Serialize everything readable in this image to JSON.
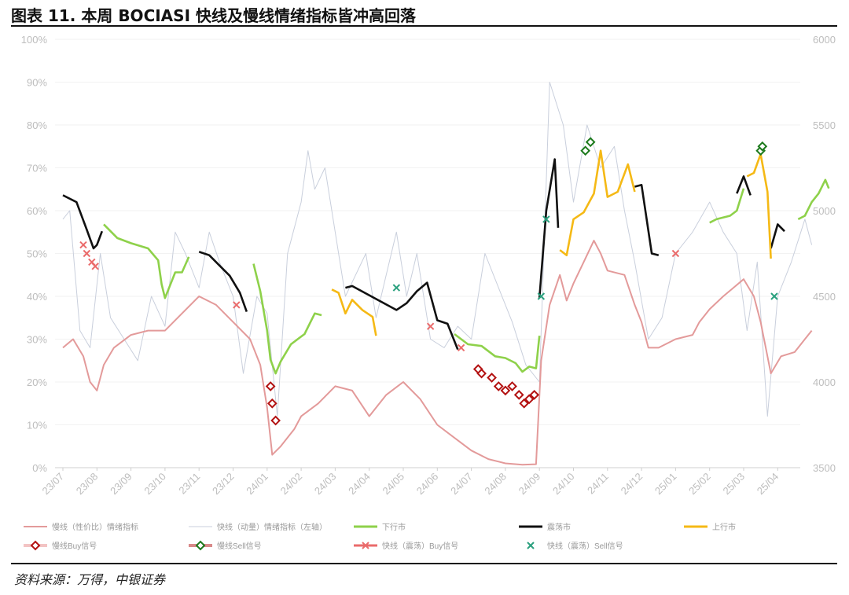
{
  "header": {
    "title": "图表 11. 本周 BOCIASI 快线及慢线情绪指标皆冲高回落"
  },
  "footer": {
    "source": "资料来源：万得，中银证券"
  },
  "colors": {
    "slow": "#e39a9a",
    "fast": "#c9cfdc",
    "down": "#8ed14a",
    "shock": "#111111",
    "up": "#f5b915",
    "slow_buy": "#b31212",
    "slow_sell": "#1c7a1c",
    "fast_buy": "#ea6b6b",
    "fast_sell": "#2aa07e",
    "grid": "#e6e6e6"
  },
  "chart_data": {
    "type": "line",
    "x_ticks": [
      "23/07",
      "23/08",
      "23/09",
      "23/10",
      "23/11",
      "23/12",
      "24/01",
      "24/02",
      "24/03",
      "24/04",
      "24/05",
      "24/06",
      "24/07",
      "24/08",
      "24/09",
      "24/10",
      "24/11",
      "24/12",
      "25/01",
      "25/02",
      "25/03",
      "25/04"
    ],
    "y_left": {
      "ticks": [
        "0%",
        "10%",
        "20%",
        "30%",
        "40%",
        "50%",
        "60%",
        "70%",
        "80%",
        "90%",
        "100%"
      ],
      "ylim": [
        0,
        100
      ]
    },
    "y_right": {
      "ticks": [
        "3500",
        "4000",
        "4500",
        "5000",
        "5500",
        "6000"
      ],
      "ylim": [
        3500,
        6000
      ]
    },
    "legend": [
      {
        "label": "慢线（性价比）情绪指标",
        "key": "slow"
      },
      {
        "label": "快线（动量）情绪指标（左轴）",
        "key": "fast"
      },
      {
        "label": "下行市",
        "key": "down"
      },
      {
        "label": "震荡市",
        "key": "shock"
      },
      {
        "label": "上行市",
        "key": "up"
      },
      {
        "label": "慢线Buy信号",
        "key": "slow_buy"
      },
      {
        "label": "慢线Sell信号",
        "key": "slow_sell"
      },
      {
        "label": "快线（震荡）Buy信号",
        "key": "fast_buy"
      },
      {
        "label": "快线（震荡）Sell信号",
        "key": "fast_sell"
      }
    ],
    "series": [
      {
        "name": "慢线（性价比）情绪指标",
        "axis": "left",
        "points": [
          [
            0.0,
            28
          ],
          [
            0.3,
            30
          ],
          [
            0.6,
            26
          ],
          [
            0.8,
            20
          ],
          [
            1.0,
            18
          ],
          [
            1.2,
            24
          ],
          [
            1.5,
            28
          ],
          [
            2.0,
            31
          ],
          [
            2.5,
            32
          ],
          [
            3.0,
            32
          ],
          [
            3.5,
            36
          ],
          [
            4.0,
            40
          ],
          [
            4.5,
            38
          ],
          [
            5.0,
            34
          ],
          [
            5.5,
            30
          ],
          [
            5.8,
            24
          ],
          [
            6.0,
            14
          ],
          [
            6.15,
            3
          ],
          [
            6.4,
            5
          ],
          [
            6.8,
            9
          ],
          [
            7.0,
            12
          ],
          [
            7.5,
            15
          ],
          [
            8.0,
            19
          ],
          [
            8.5,
            18
          ],
          [
            9.0,
            12
          ],
          [
            9.5,
            17
          ],
          [
            10.0,
            20
          ],
          [
            10.5,
            16
          ],
          [
            11.0,
            10
          ],
          [
            11.5,
            7
          ],
          [
            12.0,
            4
          ],
          [
            12.5,
            2
          ],
          [
            13.0,
            1
          ],
          [
            13.5,
            0.7
          ],
          [
            13.9,
            0.8
          ],
          [
            14.05,
            25
          ],
          [
            14.3,
            38
          ],
          [
            14.6,
            45
          ],
          [
            14.8,
            39
          ],
          [
            15.0,
            43
          ],
          [
            15.3,
            48
          ],
          [
            15.6,
            53
          ],
          [
            15.8,
            50
          ],
          [
            16.0,
            46
          ],
          [
            16.5,
            45
          ],
          [
            16.8,
            38
          ],
          [
            17.0,
            34
          ],
          [
            17.2,
            28
          ],
          [
            17.5,
            28
          ],
          [
            18.0,
            30
          ],
          [
            18.5,
            31
          ],
          [
            18.7,
            34
          ],
          [
            19.0,
            37
          ],
          [
            19.4,
            40
          ],
          [
            19.7,
            42
          ],
          [
            20.0,
            44
          ],
          [
            20.3,
            40
          ],
          [
            20.5,
            34
          ],
          [
            20.8,
            22
          ],
          [
            21.1,
            26
          ],
          [
            21.5,
            27
          ],
          [
            21.8,
            30
          ],
          [
            22.0,
            32
          ]
        ]
      },
      {
        "name": "快线（动量）情绪指标（左轴）",
        "axis": "left",
        "points": [
          [
            0.0,
            58
          ],
          [
            0.2,
            60
          ],
          [
            0.5,
            32
          ],
          [
            0.8,
            28
          ],
          [
            1.1,
            50
          ],
          [
            1.4,
            35
          ],
          [
            1.8,
            30
          ],
          [
            2.2,
            25
          ],
          [
            2.6,
            40
          ],
          [
            3.0,
            33
          ],
          [
            3.3,
            55
          ],
          [
            3.6,
            50
          ],
          [
            4.0,
            42
          ],
          [
            4.3,
            55
          ],
          [
            4.6,
            48
          ],
          [
            5.0,
            40
          ],
          [
            5.3,
            22
          ],
          [
            5.7,
            40
          ],
          [
            6.0,
            36
          ],
          [
            6.3,
            12
          ],
          [
            6.6,
            50
          ],
          [
            7.0,
            62
          ],
          [
            7.2,
            74
          ],
          [
            7.4,
            65
          ],
          [
            7.7,
            70
          ],
          [
            8.0,
            55
          ],
          [
            8.3,
            40
          ],
          [
            8.6,
            45
          ],
          [
            8.9,
            50
          ],
          [
            9.2,
            35
          ],
          [
            9.5,
            45
          ],
          [
            9.8,
            55
          ],
          [
            10.1,
            40
          ],
          [
            10.4,
            50
          ],
          [
            10.8,
            30
          ],
          [
            11.2,
            28
          ],
          [
            11.6,
            33
          ],
          [
            12.0,
            30
          ],
          [
            12.4,
            50
          ],
          [
            12.8,
            42
          ],
          [
            13.2,
            34
          ],
          [
            13.6,
            24
          ],
          [
            14.0,
            20
          ],
          [
            14.3,
            90
          ],
          [
            14.7,
            80
          ],
          [
            15.0,
            62
          ],
          [
            15.4,
            80
          ],
          [
            15.8,
            70
          ],
          [
            16.2,
            75
          ],
          [
            16.5,
            60
          ],
          [
            16.8,
            48
          ],
          [
            17.2,
            30
          ],
          [
            17.6,
            35
          ],
          [
            18.0,
            50
          ],
          [
            18.5,
            55
          ],
          [
            19.0,
            62
          ],
          [
            19.4,
            55
          ],
          [
            19.8,
            50
          ],
          [
            20.1,
            32
          ],
          [
            20.4,
            48
          ],
          [
            20.7,
            12
          ],
          [
            21.0,
            40
          ],
          [
            21.4,
            48
          ],
          [
            21.8,
            58
          ],
          [
            22.0,
            52
          ]
        ]
      },
      {
        "name": "下行市",
        "axis": "right",
        "segments": [
          [
            [
              1.2,
              4920
            ],
            [
              1.6,
              4840
            ],
            [
              2.0,
              4810
            ],
            [
              2.5,
              4780
            ],
            [
              2.8,
              4710
            ],
            [
              2.9,
              4570
            ],
            [
              3.0,
              4490
            ],
            [
              3.3,
              4640
            ],
            [
              3.5,
              4640
            ],
            [
              3.7,
              4730
            ]
          ],
          [
            [
              5.6,
              4690
            ],
            [
              5.8,
              4530
            ],
            [
              6.0,
              4300
            ],
            [
              6.1,
              4130
            ],
            [
              6.25,
              4050
            ],
            [
              6.4,
              4120
            ],
            [
              6.7,
              4220
            ],
            [
              7.1,
              4280
            ],
            [
              7.4,
              4400
            ],
            [
              7.6,
              4390
            ]
          ],
          [
            [
              11.5,
              4280
            ],
            [
              11.9,
              4220
            ],
            [
              12.3,
              4210
            ],
            [
              12.7,
              4150
            ],
            [
              13.0,
              4140
            ],
            [
              13.3,
              4110
            ],
            [
              13.5,
              4060
            ],
            [
              13.7,
              4090
            ],
            [
              13.9,
              4080
            ],
            [
              14.0,
              4270
            ]
          ],
          [
            [
              19.0,
              4930
            ],
            [
              19.2,
              4950
            ],
            [
              19.6,
              4970
            ],
            [
              19.8,
              5000
            ],
            [
              20.0,
              5130
            ]
          ],
          [
            [
              21.6,
              4950
            ],
            [
              21.8,
              4970
            ],
            [
              22.0,
              5050
            ],
            [
              22.2,
              5100
            ],
            [
              22.4,
              5180
            ],
            [
              22.5,
              5130
            ]
          ]
        ]
      },
      {
        "name": "震荡市",
        "axis": "right",
        "segments": [
          [
            [
              0.0,
              5090
            ],
            [
              0.4,
              5050
            ],
            [
              0.7,
              4890
            ],
            [
              0.9,
              4780
            ],
            [
              1.0,
              4800
            ],
            [
              1.15,
              4880
            ]
          ],
          [
            [
              4.0,
              4760
            ],
            [
              4.3,
              4740
            ],
            [
              4.6,
              4680
            ],
            [
              4.9,
              4620
            ],
            [
              5.2,
              4520
            ],
            [
              5.4,
              4410
            ]
          ],
          [
            [
              8.3,
              4550
            ],
            [
              8.5,
              4560
            ],
            [
              9.8,
              4420
            ],
            [
              10.1,
              4460
            ],
            [
              10.4,
              4530
            ],
            [
              10.7,
              4580
            ],
            [
              11.0,
              4360
            ],
            [
              11.3,
              4340
            ],
            [
              11.6,
              4190
            ]
          ],
          [
            [
              14.0,
              4490
            ],
            [
              14.2,
              5000
            ],
            [
              14.45,
              5300
            ],
            [
              14.55,
              4900
            ]
          ],
          [
            [
              16.8,
              5140
            ],
            [
              17.0,
              5150
            ],
            [
              17.3,
              4750
            ],
            [
              17.5,
              4740
            ]
          ],
          [
            [
              19.8,
              5100
            ],
            [
              20.0,
              5200
            ],
            [
              20.2,
              5090
            ]
          ],
          [
            [
              20.8,
              4780
            ],
            [
              21.0,
              4920
            ],
            [
              21.2,
              4880
            ]
          ]
        ]
      },
      {
        "name": "上行市",
        "axis": "right",
        "segments": [
          [
            [
              7.9,
              4540
            ],
            [
              8.1,
              4520
            ],
            [
              8.3,
              4400
            ],
            [
              8.5,
              4480
            ],
            [
              8.8,
              4420
            ],
            [
              9.1,
              4380
            ],
            [
              9.2,
              4270
            ]
          ],
          [
            [
              14.6,
              4770
            ],
            [
              14.8,
              4740
            ],
            [
              15.0,
              4950
            ],
            [
              15.3,
              4990
            ],
            [
              15.6,
              5100
            ],
            [
              15.8,
              5350
            ],
            [
              16.0,
              5080
            ],
            [
              16.3,
              5110
            ],
            [
              16.6,
              5270
            ],
            [
              16.8,
              5110
            ]
          ],
          [
            [
              20.1,
              5200
            ],
            [
              20.3,
              5220
            ],
            [
              20.5,
              5330
            ],
            [
              20.7,
              5110
            ],
            [
              20.8,
              4720
            ]
          ]
        ]
      }
    ],
    "markers": [
      {
        "name": "慢线Buy信号",
        "axis": "left",
        "points": [
          [
            6.1,
            19
          ],
          [
            6.15,
            15
          ],
          [
            6.25,
            11
          ],
          [
            12.2,
            23
          ],
          [
            12.3,
            22
          ],
          [
            12.6,
            21
          ],
          [
            12.8,
            19
          ],
          [
            13.0,
            18
          ],
          [
            13.2,
            19
          ],
          [
            13.4,
            17
          ],
          [
            13.55,
            15
          ],
          [
            13.7,
            16
          ],
          [
            13.85,
            17
          ]
        ]
      },
      {
        "name": "慢线Sell信号",
        "axis": "left",
        "points": [
          [
            15.35,
            74
          ],
          [
            15.5,
            76
          ],
          [
            20.5,
            74
          ],
          [
            20.55,
            75
          ]
        ]
      },
      {
        "name": "快线（震荡）Buy信号",
        "axis": "left",
        "points": [
          [
            0.6,
            52
          ],
          [
            0.7,
            50
          ],
          [
            0.85,
            48
          ],
          [
            0.95,
            47
          ],
          [
            5.1,
            38
          ],
          [
            10.8,
            33
          ],
          [
            11.7,
            28
          ],
          [
            18.0,
            50
          ]
        ]
      },
      {
        "name": "快线（震荡）Sell信号",
        "axis": "left",
        "points": [
          [
            9.8,
            42
          ],
          [
            14.05,
            40
          ],
          [
            14.2,
            58
          ],
          [
            20.9,
            40
          ]
        ]
      }
    ]
  }
}
